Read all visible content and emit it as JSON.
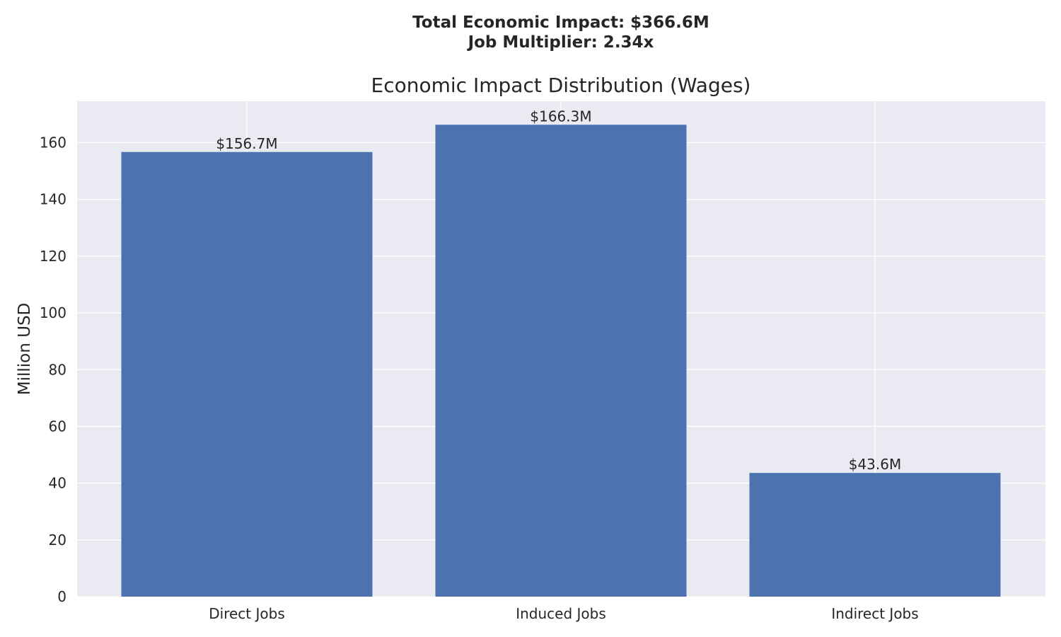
{
  "header": {
    "line1": "Total Economic Impact: $366.6M",
    "line2": "Job Multiplier: 2.34x"
  },
  "chart_data": {
    "type": "bar",
    "title": "Economic Impact Distribution (Wages)",
    "xlabel": "",
    "ylabel": "Million USD",
    "categories": [
      "Direct Jobs",
      "Induced Jobs",
      "Indirect Jobs"
    ],
    "values": [
      156.7,
      166.3,
      43.6
    ],
    "data_labels": [
      "$156.7M",
      "$166.3M",
      "$43.6M"
    ],
    "ylim": [
      0,
      174.6
    ],
    "yticks": [
      0,
      20,
      40,
      60,
      80,
      100,
      120,
      140,
      160
    ],
    "grid": true,
    "legend": "none",
    "colors": {
      "bar": "#4c72b0",
      "plot_background": "#eaeaf2",
      "grid": "#ffffff",
      "text": "#262626"
    }
  }
}
